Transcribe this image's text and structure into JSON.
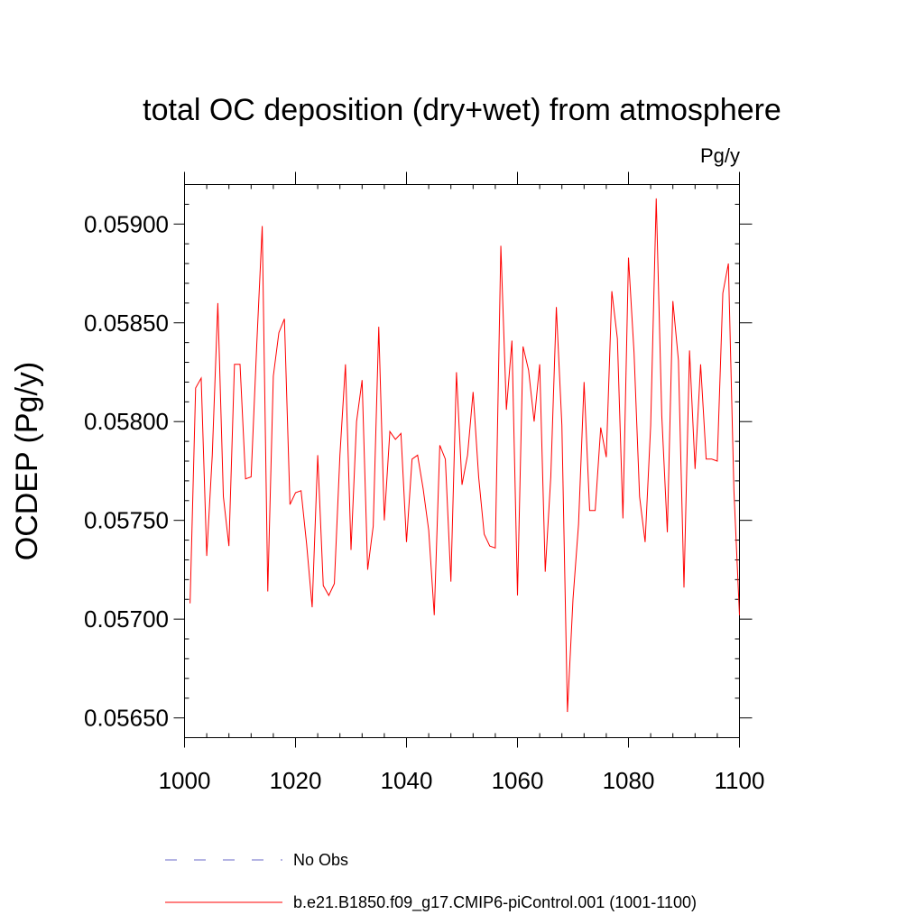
{
  "chart_data": {
    "type": "line",
    "title": "total OC deposition (dry+wet) from atmosphere",
    "units": "Pg/y",
    "ylabel": "OCDEP  (Pg/y)",
    "xlabel": "",
    "xlim": [
      1000,
      1100
    ],
    "ylim": [
      0.0564,
      0.0592
    ],
    "xticks": [
      1000,
      1020,
      1040,
      1060,
      1080,
      1100
    ],
    "xtick_labels": [
      "1000",
      "1020",
      "1040",
      "1060",
      "1080",
      "1100"
    ],
    "yticks": [
      0.0565,
      0.057,
      0.0575,
      0.058,
      0.0585,
      0.059
    ],
    "ytick_labels": [
      "0.05650",
      "0.05700",
      "0.05750",
      "0.05800",
      "0.05850",
      "0.05900"
    ],
    "grid": false,
    "legend_position": "bottom",
    "series": [
      {
        "name": "No Obs",
        "color": "#6a6ac8",
        "dashed": true,
        "x": [],
        "values": []
      },
      {
        "name": "b.e21.B1850.f09_g17.CMIP6-piControl.001 (1001-1100)",
        "color": "#ff0000",
        "dashed": false,
        "x": [
          1001,
          1002,
          1003,
          1004,
          1005,
          1006,
          1007,
          1008,
          1009,
          1010,
          1011,
          1012,
          1013,
          1014,
          1015,
          1016,
          1017,
          1018,
          1019,
          1020,
          1021,
          1022,
          1023,
          1024,
          1025,
          1026,
          1027,
          1028,
          1029,
          1030,
          1031,
          1032,
          1033,
          1034,
          1035,
          1036,
          1037,
          1038,
          1039,
          1040,
          1041,
          1042,
          1043,
          1044,
          1045,
          1046,
          1047,
          1048,
          1049,
          1050,
          1051,
          1052,
          1053,
          1054,
          1055,
          1056,
          1057,
          1058,
          1059,
          1060,
          1061,
          1062,
          1063,
          1064,
          1065,
          1066,
          1067,
          1068,
          1069,
          1070,
          1071,
          1072,
          1073,
          1074,
          1075,
          1076,
          1077,
          1078,
          1079,
          1080,
          1081,
          1082,
          1083,
          1084,
          1085,
          1086,
          1087,
          1088,
          1089,
          1090,
          1091,
          1092,
          1093,
          1094,
          1095,
          1096,
          1097,
          1098,
          1099,
          1100
        ],
        "values": [
          0.05708,
          0.05817,
          0.05822,
          0.05732,
          0.05783,
          0.0586,
          0.05762,
          0.05737,
          0.05829,
          0.05829,
          0.05771,
          0.05772,
          0.05838,
          0.05899,
          0.05714,
          0.05823,
          0.05845,
          0.05852,
          0.05758,
          0.05764,
          0.05765,
          0.05738,
          0.05706,
          0.05783,
          0.05717,
          0.05712,
          0.05718,
          0.05783,
          0.05829,
          0.05735,
          0.058,
          0.05821,
          0.05725,
          0.05747,
          0.05848,
          0.0575,
          0.05795,
          0.05791,
          0.05794,
          0.05739,
          0.05781,
          0.05783,
          0.05766,
          0.05745,
          0.05702,
          0.05788,
          0.05781,
          0.05719,
          0.05825,
          0.05768,
          0.05783,
          0.05815,
          0.05772,
          0.05743,
          0.05737,
          0.05736,
          0.05889,
          0.05806,
          0.05841,
          0.05712,
          0.05838,
          0.05826,
          0.058,
          0.05829,
          0.05724,
          0.05772,
          0.05858,
          0.05798,
          0.05653,
          0.0571,
          0.05748,
          0.0582,
          0.05755,
          0.05755,
          0.05797,
          0.05782,
          0.05866,
          0.05842,
          0.05751,
          0.05883,
          0.05835,
          0.05762,
          0.05739,
          0.05798,
          0.05913,
          0.05803,
          0.05744,
          0.05861,
          0.05831,
          0.05716,
          0.05836,
          0.05776,
          0.05829,
          0.05781,
          0.05781,
          0.0578,
          0.05865,
          0.0588,
          0.05765,
          0.05702
        ]
      }
    ]
  }
}
